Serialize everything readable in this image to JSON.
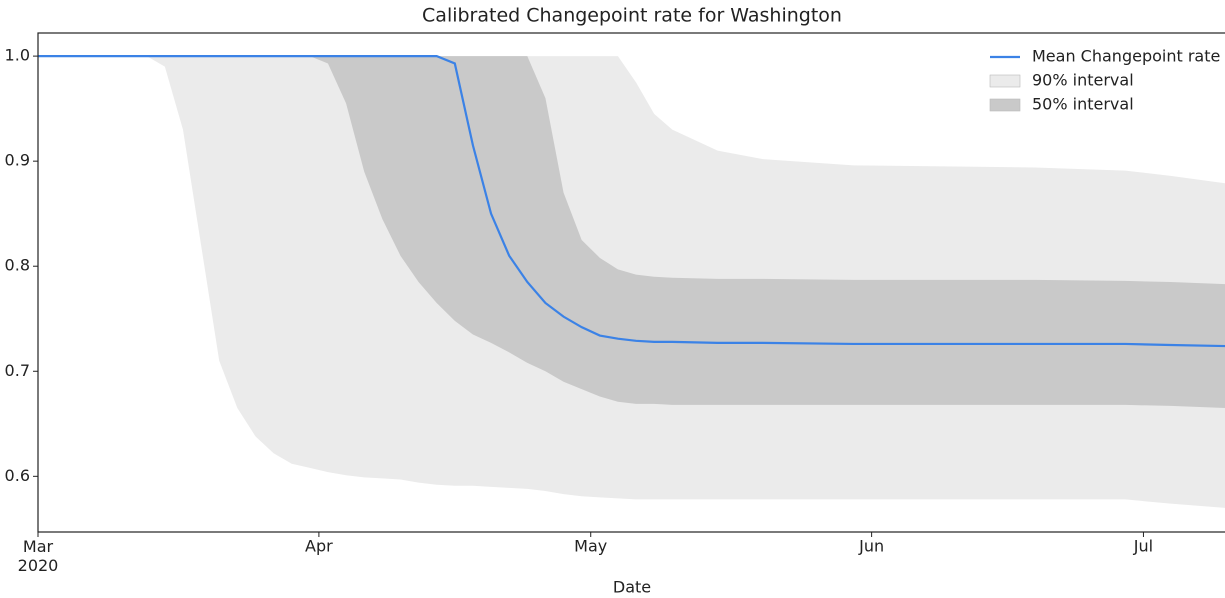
{
  "chart_data": {
    "type": "line",
    "title": "Calibrated Changepoint rate for Washington",
    "x_label": "Date",
    "x": [
      0,
      10,
      12,
      14,
      16,
      18,
      20,
      22,
      24,
      26,
      28,
      30,
      32,
      34,
      36,
      38,
      40,
      42,
      44,
      46,
      48,
      50,
      52,
      54,
      56,
      58,
      60,
      62,
      64,
      66,
      68,
      70,
      75,
      80,
      90,
      100,
      110,
      120,
      125,
      131
    ],
    "xlim": [
      0,
      131
    ],
    "xticks": [
      {
        "value": 0,
        "label": "Mar 2020"
      },
      {
        "value": 31,
        "label": "Apr"
      },
      {
        "value": 61,
        "label": "May"
      },
      {
        "value": 92,
        "label": "Jun"
      },
      {
        "value": 122,
        "label": "Jul"
      }
    ],
    "ylim": [
      0.547,
      1.022
    ],
    "yticks": [
      0.6,
      0.7,
      0.8,
      0.9,
      {
        "value": 1,
        "label": "1.0"
      }
    ],
    "legend": "upper right",
    "series": [
      {
        "name": "Mean Changepoint rate",
        "color": "#3b82e6",
        "values": [
          1,
          1,
          1,
          1,
          1,
          1,
          1,
          1,
          1,
          1,
          1,
          1,
          1,
          1,
          1,
          1,
          1,
          1,
          1,
          0.993,
          0.915,
          0.85,
          0.81,
          0.785,
          0.765,
          0.752,
          0.742,
          0.734,
          0.731,
          0.729,
          0.728,
          0.728,
          0.727,
          0.727,
          0.726,
          0.726,
          0.726,
          0.726,
          0.725,
          0.724
        ]
      }
    ],
    "bands": [
      {
        "name": "90% interval",
        "color": "#ebebeb",
        "lower": [
          1,
          1,
          1,
          0.99,
          0.93,
          0.82,
          0.71,
          0.665,
          0.638,
          0.622,
          0.612,
          0.608,
          0.604,
          0.601,
          0.599,
          0.598,
          0.597,
          0.594,
          0.592,
          0.591,
          0.591,
          0.59,
          0.589,
          0.588,
          0.586,
          0.583,
          0.581,
          0.58,
          0.579,
          0.578,
          0.578,
          0.578,
          0.578,
          0.578,
          0.578,
          0.578,
          0.578,
          0.578,
          0.574,
          0.57
        ],
        "upper": [
          1,
          1,
          1,
          1,
          1,
          1,
          1,
          1,
          1,
          1,
          1,
          1,
          1,
          1,
          1,
          1,
          1,
          1,
          1,
          1,
          1,
          1,
          1,
          1,
          1,
          1,
          1,
          1,
          1,
          0.975,
          0.945,
          0.93,
          0.91,
          0.902,
          0.896,
          0.895,
          0.894,
          0.891,
          0.886,
          0.879
        ]
      },
      {
        "name": "50% interval",
        "color": "#c9c9c9",
        "lower": [
          1,
          1,
          1,
          1,
          1,
          1,
          1,
          1,
          1,
          1,
          1,
          1,
          0.993,
          0.955,
          0.89,
          0.845,
          0.81,
          0.785,
          0.765,
          0.748,
          0.735,
          0.727,
          0.718,
          0.708,
          0.7,
          0.69,
          0.683,
          0.676,
          0.671,
          0.669,
          0.669,
          0.668,
          0.668,
          0.668,
          0.668,
          0.668,
          0.668,
          0.668,
          0.667,
          0.665
        ],
        "upper": [
          1,
          1,
          1,
          1,
          1,
          1,
          1,
          1,
          1,
          1,
          1,
          1,
          1,
          1,
          1,
          1,
          1,
          1,
          1,
          1,
          1,
          1,
          1,
          1,
          0.96,
          0.87,
          0.825,
          0.808,
          0.797,
          0.792,
          0.79,
          0.789,
          0.788,
          0.788,
          0.787,
          0.787,
          0.787,
          0.786,
          0.785,
          0.783
        ]
      }
    ]
  }
}
